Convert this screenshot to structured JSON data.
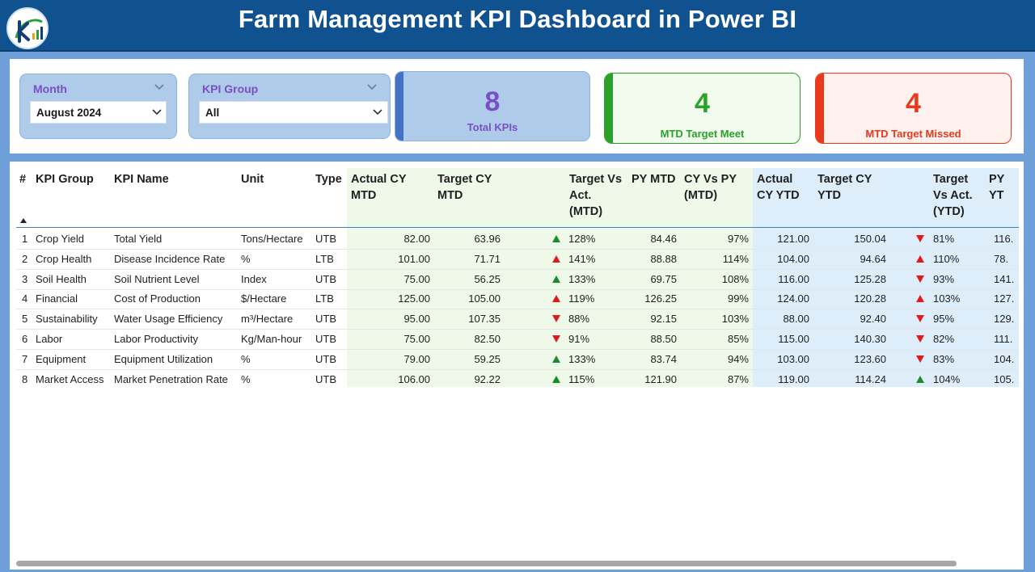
{
  "header": {
    "title": "Farm Management KPI Dashboard in Power BI"
  },
  "filters": {
    "month": {
      "label": "Month",
      "value": "August 2024"
    },
    "kpi_group": {
      "label": "KPI Group",
      "value": "All"
    }
  },
  "cards": {
    "total": {
      "value": "8",
      "label": "Total KPIs"
    },
    "met": {
      "value": "4",
      "label": "MTD Target Meet"
    },
    "missed": {
      "value": "4",
      "label": "MTD Target Missed"
    }
  },
  "colors": {
    "header_bg": "#10518f",
    "met_green": "#2aa22a",
    "missed_red": "#e8391c",
    "total_purple": "#7b4fc4",
    "mtd_bg": "#eef9e9",
    "ytd_bg": "#ddeefa"
  },
  "table": {
    "headers": {
      "num": "#",
      "group": "KPI Group",
      "name": "KPI Name",
      "unit": "Unit",
      "type": "Type",
      "actual_mtd_1": "Actual CY",
      "actual_mtd_2": "MTD",
      "target_mtd_1": "Target CY",
      "target_mtd_2": "MTD",
      "tva_mtd_1": "Target Vs",
      "tva_mtd_2": "Act.",
      "tva_mtd_3": "(MTD)",
      "py_mtd": "PY MTD",
      "cyvpy_1": "CY Vs PY",
      "cyvpy_2": "(MTD)",
      "actual_ytd_1": "Actual",
      "actual_ytd_2": "CY YTD",
      "target_ytd_1": "Target CY",
      "target_ytd_2": "YTD",
      "tva_ytd_1": "Target",
      "tva_ytd_2": "Vs Act.",
      "tva_ytd_3": "(YTD)",
      "py_ytd": "PY YT"
    },
    "rows": [
      {
        "num": "1",
        "group": "Crop Yield",
        "name": "Total Yield",
        "unit": "Tons/Hectare",
        "type": "UTB",
        "actual_mtd": "82.00",
        "target_mtd": "63.96",
        "mtd_arrow": "up",
        "tva_mtd": "128%",
        "py_mtd": "84.46",
        "cyvpy": "97%",
        "actual_ytd": "121.00",
        "target_ytd": "150.04",
        "ytd_arrow": "down",
        "tva_ytd": "81%",
        "py_ytd": "116."
      },
      {
        "num": "2",
        "group": "Crop Health",
        "name": "Disease Incidence Rate",
        "unit": "%",
        "type": "LTB",
        "actual_mtd": "101.00",
        "target_mtd": "71.71",
        "mtd_arrow": "up-red",
        "tva_mtd": "141%",
        "py_mtd": "88.88",
        "cyvpy": "114%",
        "actual_ytd": "104.00",
        "target_ytd": "94.64",
        "ytd_arrow": "up-red",
        "tva_ytd": "110%",
        "py_ytd": "78."
      },
      {
        "num": "3",
        "group": "Soil Health",
        "name": "Soil Nutrient Level",
        "unit": "Index",
        "type": "UTB",
        "actual_mtd": "75.00",
        "target_mtd": "56.25",
        "mtd_arrow": "up",
        "tva_mtd": "133%",
        "py_mtd": "69.75",
        "cyvpy": "108%",
        "actual_ytd": "116.00",
        "target_ytd": "125.28",
        "ytd_arrow": "down",
        "tva_ytd": "93%",
        "py_ytd": "141."
      },
      {
        "num": "4",
        "group": "Financial",
        "name": "Cost of Production",
        "unit": "$/Hectare",
        "type": "LTB",
        "actual_mtd": "125.00",
        "target_mtd": "105.00",
        "mtd_arrow": "up-red",
        "tva_mtd": "119%",
        "py_mtd": "126.25",
        "cyvpy": "99%",
        "actual_ytd": "124.00",
        "target_ytd": "120.28",
        "ytd_arrow": "up-red",
        "tva_ytd": "103%",
        "py_ytd": "127."
      },
      {
        "num": "5",
        "group": "Sustainability",
        "name": "Water Usage Efficiency",
        "unit": "m³/Hectare",
        "type": "UTB",
        "actual_mtd": "95.00",
        "target_mtd": "107.35",
        "mtd_arrow": "down",
        "tva_mtd": "88%",
        "py_mtd": "92.15",
        "cyvpy": "103%",
        "actual_ytd": "88.00",
        "target_ytd": "92.40",
        "ytd_arrow": "down",
        "tva_ytd": "95%",
        "py_ytd": "129."
      },
      {
        "num": "6",
        "group": "Labor",
        "name": "Labor Productivity",
        "unit": "Kg/Man-hour",
        "type": "UTB",
        "actual_mtd": "75.00",
        "target_mtd": "82.50",
        "mtd_arrow": "down",
        "tva_mtd": "91%",
        "py_mtd": "88.50",
        "cyvpy": "85%",
        "actual_ytd": "115.00",
        "target_ytd": "140.30",
        "ytd_arrow": "down",
        "tva_ytd": "82%",
        "py_ytd": "111."
      },
      {
        "num": "7",
        "group": "Equipment",
        "name": "Equipment Utilization",
        "unit": "%",
        "type": "UTB",
        "actual_mtd": "79.00",
        "target_mtd": "59.25",
        "mtd_arrow": "up",
        "tva_mtd": "133%",
        "py_mtd": "83.74",
        "cyvpy": "94%",
        "actual_ytd": "103.00",
        "target_ytd": "123.60",
        "ytd_arrow": "down",
        "tva_ytd": "83%",
        "py_ytd": "104."
      },
      {
        "num": "8",
        "group": "Market Access",
        "name": "Market Penetration Rate",
        "unit": "%",
        "type": "UTB",
        "actual_mtd": "106.00",
        "target_mtd": "92.22",
        "mtd_arrow": "up",
        "tva_mtd": "115%",
        "py_mtd": "121.90",
        "cyvpy": "87%",
        "actual_ytd": "119.00",
        "target_ytd": "114.24",
        "ytd_arrow": "up",
        "tva_ytd": "104%",
        "py_ytd": "105."
      }
    ]
  }
}
